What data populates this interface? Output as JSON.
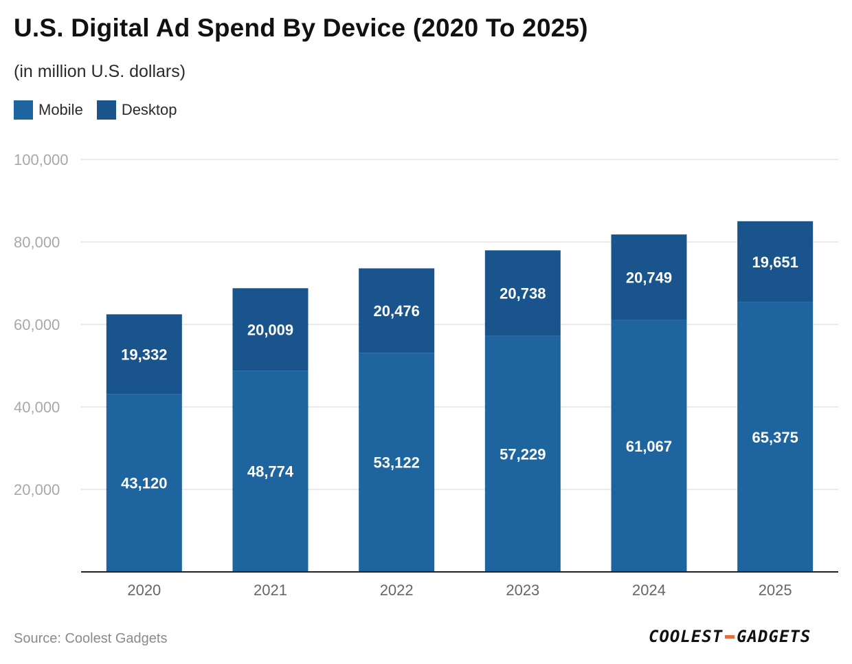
{
  "header": {
    "title": "U.S. Digital Ad Spend By Device (2020 To 2025)",
    "subtitle": "(in million U.S. dollars)"
  },
  "legend": [
    {
      "label": "Mobile",
      "color": "#1e65a0"
    },
    {
      "label": "Desktop",
      "color": "#1a548c"
    }
  ],
  "chart_data": {
    "type": "bar",
    "stacked": true,
    "title": "U.S. Digital Ad Spend By Device (2020 To 2025)",
    "subtitle": "(in million U.S. dollars)",
    "categories": [
      "2020",
      "2021",
      "2022",
      "2023",
      "2024",
      "2025"
    ],
    "series": [
      {
        "name": "Mobile",
        "color": "#1e65a0",
        "values": [
          43120,
          48774,
          53122,
          57229,
          61067,
          65375
        ]
      },
      {
        "name": "Desktop",
        "color": "#1a548c",
        "values": [
          19332,
          20009,
          20476,
          20738,
          20749,
          19651
        ]
      }
    ],
    "data_labels": {
      "Mobile": [
        "43,120",
        "48,774",
        "53,122",
        "57,229",
        "61,067",
        "65,375"
      ],
      "Desktop": [
        "19,332",
        "20,009",
        "20,476",
        "20,738",
        "20,749",
        "19,651"
      ]
    },
    "ylim": [
      0,
      100000
    ],
    "yticks": [
      20000,
      40000,
      60000,
      80000,
      100000
    ],
    "ytick_labels": [
      "20,000",
      "40,000",
      "60,000",
      "80,000",
      "100,000"
    ],
    "xlabel": "",
    "ylabel": "",
    "grid": true,
    "legend_position": "top-left"
  },
  "footer": {
    "source": "Source: Coolest Gadgets",
    "logo_left": "COOLEST",
    "logo_right": "GADGETS"
  }
}
